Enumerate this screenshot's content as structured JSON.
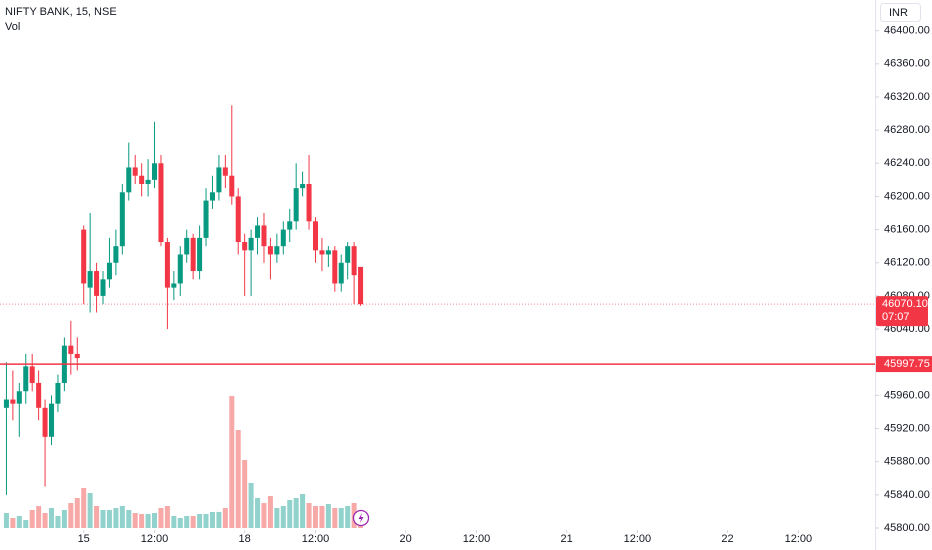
{
  "chart_data": {
    "type": "candlestick",
    "title": "NIFTY BANK, 15, NSE",
    "volume_label": "Vol",
    "currency": "INR",
    "up_color": "#089981",
    "down_color": "#f23645",
    "volume_up_color": "#92d2cc",
    "volume_down_color": "#f7a9a7",
    "ylim": [
      45800,
      46437
    ],
    "yticks": [
      {
        "value": 46400,
        "label": "46400.00"
      },
      {
        "value": 46360,
        "label": "46360.00"
      },
      {
        "value": 46320,
        "label": "46320.00"
      },
      {
        "value": 46280,
        "label": "46280.00"
      },
      {
        "value": 46240,
        "label": "46240.00"
      },
      {
        "value": 46200,
        "label": "46200.00"
      },
      {
        "value": 46160,
        "label": "46160.00"
      },
      {
        "value": 46120,
        "label": "46120.00"
      },
      {
        "value": 46080,
        "label": "46080.00"
      },
      {
        "value": 46040,
        "label": "46040.00"
      },
      {
        "value": 45960,
        "label": "45960.00"
      },
      {
        "value": 45920,
        "label": "45920.00"
      },
      {
        "value": 45880,
        "label": "45880.00"
      },
      {
        "value": 45840,
        "label": "45840.00"
      },
      {
        "value": 45800,
        "label": "45800.00"
      }
    ],
    "xlim": [
      -1,
      134.9
    ],
    "xticks": [
      {
        "value": 12,
        "label": "15"
      },
      {
        "value": 23,
        "label": "12:00"
      },
      {
        "value": 37,
        "label": "18"
      },
      {
        "value": 48,
        "label": "12:00"
      },
      {
        "value": 62,
        "label": "20"
      },
      {
        "value": 73,
        "label": "12:00"
      },
      {
        "value": 87,
        "label": "21"
      },
      {
        "value": 98,
        "label": "12:00"
      },
      {
        "value": 112,
        "label": "22"
      },
      {
        "value": 123,
        "label": "12:00"
      }
    ],
    "open": [
      45945,
      45955,
      45950,
      45965,
      45995,
      45975,
      45945,
      45910,
      45950,
      45975,
      46020,
      46010,
      46160,
      46090,
      46110,
      46080,
      46100,
      46120,
      46140,
      46205,
      46235,
      46225,
      46215,
      46220,
      46240,
      46145,
      46090,
      46095,
      46130,
      46150,
      46110,
      46150,
      46195,
      46205,
      46235,
      46225,
      46200,
      46145,
      46135,
      46150,
      46165,
      46140,
      46130,
      46140,
      46160,
      46170,
      46210,
      46215,
      46170,
      46135,
      46130,
      46135,
      46095,
      46120,
      46140,
      46115
    ],
    "high": [
      46000,
      45990,
      45975,
      46010,
      46010,
      45990,
      45955,
      45960,
      45985,
      46030,
      46050,
      46030,
      46165,
      46180,
      46120,
      46110,
      46150,
      46160,
      46215,
      46265,
      46250,
      46240,
      46245,
      46290,
      46250,
      46150,
      46110,
      46140,
      46160,
      46155,
      46165,
      46210,
      46225,
      46250,
      46250,
      46310,
      46210,
      46155,
      46160,
      46175,
      46180,
      46150,
      46155,
      46170,
      46185,
      46240,
      46230,
      46250,
      46175,
      46150,
      46140,
      46140,
      46130,
      46145,
      46145,
      46115
    ],
    "low": [
      45840,
      45930,
      45910,
      45950,
      45965,
      45930,
      45850,
      45900,
      45940,
      45965,
      45985,
      45990,
      46070,
      46060,
      46060,
      46070,
      46090,
      46105,
      46130,
      46195,
      46215,
      46200,
      46200,
      46210,
      46140,
      46040,
      46075,
      46080,
      46120,
      46100,
      46100,
      46140,
      46185,
      46195,
      46210,
      46190,
      46130,
      46080,
      46080,
      46130,
      46120,
      46100,
      46120,
      46130,
      46145,
      46160,
      46200,
      46160,
      46120,
      46110,
      46115,
      46085,
      46085,
      46100,
      46070,
      46068
    ],
    "close": [
      45955,
      45950,
      45965,
      45995,
      45975,
      45945,
      45910,
      45950,
      45975,
      46020,
      46010,
      46005,
      46095,
      46110,
      46080,
      46100,
      46120,
      46140,
      46205,
      46235,
      46225,
      46215,
      46220,
      46240,
      46145,
      46090,
      46095,
      46130,
      46150,
      46110,
      46150,
      46195,
      46205,
      46235,
      46225,
      46200,
      46145,
      46135,
      46150,
      46165,
      46140,
      46130,
      46140,
      46160,
      46170,
      46210,
      46215,
      46170,
      46135,
      46130,
      46135,
      46095,
      46120,
      46140,
      46105,
      46070
    ],
    "volume": [
      15,
      10,
      12,
      8,
      18,
      22,
      15,
      20,
      12,
      18,
      25,
      30,
      40,
      35,
      22,
      18,
      18,
      20,
      22,
      18,
      15,
      14,
      14,
      15,
      20,
      22,
      12,
      10,
      12,
      12,
      14,
      14,
      16,
      16,
      20,
      132,
      98,
      68,
      45,
      30,
      25,
      32,
      20,
      22,
      28,
      30,
      34,
      25,
      22,
      22,
      24,
      20,
      20,
      22,
      25,
      15
    ],
    "last_price": {
      "value": 46070.1,
      "label": "46070.10"
    },
    "countdown": "07:07",
    "level": {
      "value": 45997.75,
      "label": "45997.75"
    }
  }
}
